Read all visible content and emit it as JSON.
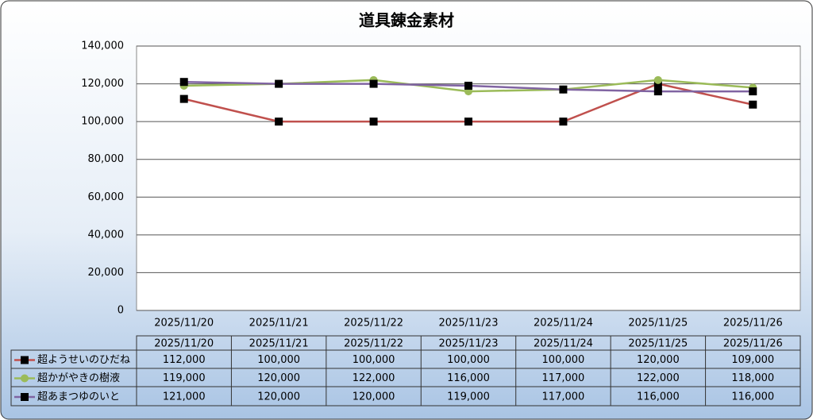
{
  "chart_data": {
    "type": "line",
    "title": "道具錬金素材",
    "categories": [
      "2025/11/20",
      "2025/11/21",
      "2025/11/22",
      "2025/11/23",
      "2025/11/24",
      "2025/11/25",
      "2025/11/26"
    ],
    "series": [
      {
        "name": "超ようせいのひだね",
        "color": "#c0504d",
        "marker": "square",
        "marker_color": "#000000",
        "values": [
          112000,
          100000,
          100000,
          100000,
          100000,
          120000,
          109000
        ],
        "value_labels": [
          "112,000",
          "100,000",
          "100,000",
          "100,000",
          "100,000",
          "120,000",
          "109,000"
        ]
      },
      {
        "name": "超かがやきの樹液",
        "color": "#9bbb59",
        "marker": "circle",
        "marker_color": "#9bbb59",
        "values": [
          119000,
          120000,
          122000,
          116000,
          117000,
          122000,
          118000
        ],
        "value_labels": [
          "119,000",
          "120,000",
          "122,000",
          "116,000",
          "117,000",
          "122,000",
          "118,000"
        ]
      },
      {
        "name": "超あまつゆのいと",
        "color": "#8064a2",
        "marker": "square",
        "marker_color": "#000000",
        "values": [
          121000,
          120000,
          120000,
          119000,
          117000,
          116000,
          116000
        ],
        "value_labels": [
          "121,000",
          "120,000",
          "120,000",
          "119,000",
          "117,000",
          "116,000",
          "116,000"
        ]
      }
    ],
    "ylim": [
      0,
      140000
    ],
    "yticks": [
      0,
      {
        "value": 20000,
        "label": "20,000"
      },
      {
        "value": 40000,
        "label": "40,000"
      },
      {
        "value": 60000,
        "label": "60,000"
      },
      {
        "value": 80000,
        "label": "80,000"
      },
      {
        "value": 100000,
        "label": "100,000"
      },
      {
        "value": 120000,
        "label": "120,000"
      },
      {
        "value": 140000,
        "label": "140,000"
      }
    ],
    "grid": true,
    "data_table": true
  }
}
